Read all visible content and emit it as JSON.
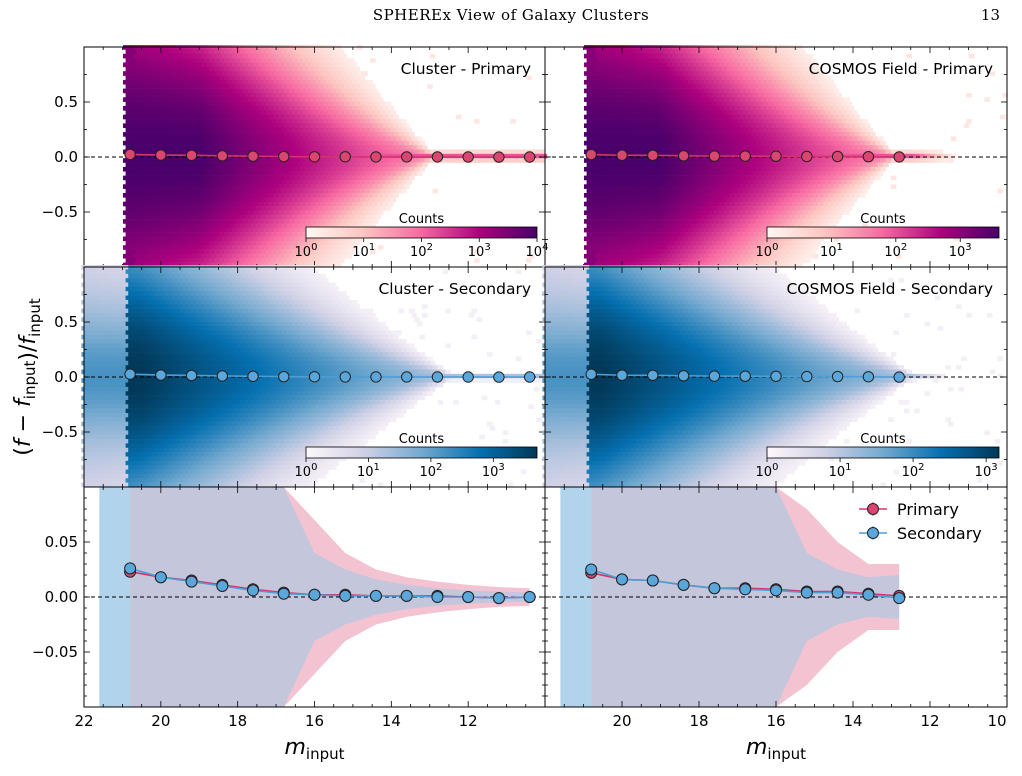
{
  "page": {
    "running_head": "SPHEREx View of Galaxy Clusters",
    "page_number": "13"
  },
  "figure": {
    "ylabel_main": "(f − f_input)/f_input",
    "xlabel": "m_input",
    "colors": {
      "primary": "#d6336c",
      "primary_marker": "#d9466f",
      "secondary": "#4d9ed6",
      "secondary_marker": "#5aa7db",
      "primary_band": "#f2b8c9",
      "secondary_band": "#9cc8e6",
      "overlap_band": "#b9a9c8"
    }
  },
  "chart_data": [
    {
      "type": "heatmap",
      "panel": "top-left",
      "title": "Cluster - Primary",
      "colormap": "RdPu",
      "colorbar_label": "Counts",
      "colorbar_ticks": [
        "10^0",
        "10^1",
        "10^2",
        "10^3",
        "10^4"
      ],
      "colorbar_range": [
        1,
        10000
      ],
      "xlim": [
        22,
        10
      ],
      "ylim": [
        -1.0,
        1.0
      ],
      "yticks": [
        "0.5",
        "0.0",
        "−0.5"
      ],
      "dense_start_x": 20.9,
      "x": [
        20.8,
        20.0,
        19.2,
        18.4,
        17.6,
        16.8,
        16.0,
        15.2,
        14.4,
        13.6,
        12.8,
        12.0,
        11.2,
        10.4
      ],
      "y": [
        0.023,
        0.018,
        0.015,
        0.011,
        0.007,
        0.004,
        0.002,
        0.002,
        0.001,
        0.001,
        0.001,
        0.0,
        -0.001,
        0.0
      ]
    },
    {
      "type": "heatmap",
      "panel": "top-right",
      "title": "COSMOS Field - Primary",
      "colormap": "RdPu",
      "colorbar_label": "Counts",
      "colorbar_ticks": [
        "10^0",
        "10^1",
        "10^2",
        "10^3"
      ],
      "colorbar_range": [
        1,
        4000
      ],
      "xlim": [
        22,
        10
      ],
      "ylim": [
        -1.0,
        1.0
      ],
      "dense_start_x": 20.9,
      "x": [
        20.8,
        20.0,
        19.2,
        18.4,
        17.6,
        16.8,
        16.0,
        15.2,
        14.4,
        13.6,
        12.8
      ],
      "y": [
        0.022,
        0.016,
        0.015,
        0.011,
        0.008,
        0.008,
        0.007,
        0.005,
        0.005,
        0.003,
        0.001
      ]
    },
    {
      "type": "heatmap",
      "panel": "middle-left",
      "title": "Cluster - Secondary",
      "colormap": "PuBu",
      "colorbar_label": "Counts",
      "colorbar_ticks": [
        "10^0",
        "10^1",
        "10^2",
        "10^3"
      ],
      "colorbar_range": [
        1,
        5000
      ],
      "xlim": [
        22,
        10
      ],
      "ylim": [
        -1.0,
        1.0
      ],
      "yticks": [
        "0.5",
        "0.0",
        "−0.5"
      ],
      "dense_start_x": 20.9,
      "x": [
        20.8,
        20.0,
        19.2,
        18.4,
        17.6,
        16.8,
        16.0,
        15.2,
        14.4,
        13.6,
        12.8,
        12.0,
        11.2,
        10.4
      ],
      "y": [
        0.026,
        0.018,
        0.014,
        0.01,
        0.006,
        0.003,
        0.002,
        0.001,
        0.001,
        0.001,
        0.0,
        0.0,
        -0.001,
        0.0
      ]
    },
    {
      "type": "heatmap",
      "panel": "middle-right",
      "title": "COSMOS Field - Secondary",
      "colormap": "PuBu",
      "colorbar_label": "Counts",
      "colorbar_ticks": [
        "10^0",
        "10^1",
        "10^2",
        "10^3"
      ],
      "colorbar_range": [
        1,
        1500
      ],
      "xlim": [
        22,
        10
      ],
      "ylim": [
        -1.0,
        1.0
      ],
      "dense_start_x": 20.9,
      "x": [
        20.8,
        20.0,
        19.2,
        18.4,
        17.6,
        16.8,
        16.0,
        15.2,
        14.4,
        13.6,
        12.8
      ],
      "y": [
        0.025,
        0.016,
        0.015,
        0.011,
        0.008,
        0.007,
        0.006,
        0.004,
        0.004,
        0.002,
        -0.001
      ]
    },
    {
      "type": "line",
      "panel": "bottom-left",
      "xlim": [
        22,
        10
      ],
      "ylim": [
        -0.1,
        0.1
      ],
      "xticks": [
        "22",
        "20",
        "18",
        "16",
        "14",
        "12"
      ],
      "yticks": [
        "0.05",
        "0.00",
        "−0.05"
      ],
      "xlabel": "m_input",
      "secondary_band_x": [
        21.6,
        20.8
      ],
      "series": [
        {
          "name": "Primary",
          "x": [
            20.8,
            20.0,
            19.2,
            18.4,
            17.6,
            16.8,
            16.0,
            15.2,
            14.4,
            13.6,
            12.8,
            12.0,
            11.2,
            10.4
          ],
          "y": [
            0.023,
            0.018,
            0.015,
            0.011,
            0.007,
            0.004,
            0.002,
            0.002,
            0.001,
            0.001,
            0.001,
            0.0,
            -0.001,
            0.0
          ],
          "band_x": [
            20.8,
            20.0,
            19.2,
            18.4,
            17.6,
            16.8,
            16.0,
            15.2,
            14.4,
            13.6,
            12.8,
            12.0,
            11.2,
            10.4
          ],
          "band_upper": [
            0.2,
            0.2,
            0.2,
            0.2,
            0.2,
            0.2,
            0.07,
            0.04,
            0.025,
            0.018,
            0.014,
            0.011,
            0.009,
            0.008
          ],
          "band_lower": [
            -0.2,
            -0.2,
            -0.2,
            -0.2,
            -0.2,
            -0.2,
            -0.07,
            -0.04,
            -0.025,
            -0.018,
            -0.014,
            -0.011,
            -0.009,
            -0.008
          ]
        },
        {
          "name": "Secondary",
          "x": [
            20.8,
            20.0,
            19.2,
            18.4,
            17.6,
            16.8,
            16.0,
            15.2,
            14.4,
            13.6,
            12.8,
            12.0,
            11.2,
            10.4
          ],
          "y": [
            0.026,
            0.018,
            0.014,
            0.01,
            0.006,
            0.003,
            0.002,
            0.001,
            0.001,
            0.001,
            0.0,
            0.0,
            -0.001,
            0.0
          ],
          "band_x": [
            21.6,
            20.8,
            20.0,
            19.2,
            18.4,
            17.6,
            16.8,
            16.0,
            15.2,
            14.4,
            13.6,
            12.8,
            12.0,
            11.2,
            10.4
          ],
          "band_upper": [
            0.2,
            0.2,
            0.2,
            0.2,
            0.2,
            0.2,
            0.2,
            0.04,
            0.025,
            0.016,
            0.011,
            0.008,
            0.006,
            0.005,
            0.004
          ],
          "band_lower": [
            -0.2,
            -0.2,
            -0.2,
            -0.2,
            -0.2,
            -0.2,
            -0.2,
            -0.04,
            -0.025,
            -0.016,
            -0.011,
            -0.008,
            -0.006,
            -0.005,
            -0.004
          ]
        }
      ]
    },
    {
      "type": "line",
      "panel": "bottom-right",
      "xlim": [
        22,
        10
      ],
      "ylim": [
        -0.1,
        0.1
      ],
      "xticks": [
        "20",
        "18",
        "16",
        "14",
        "12",
        "10"
      ],
      "xlabel": "m_input",
      "legend_position": "top-right",
      "secondary_band_x": [
        21.6,
        20.8
      ],
      "series": [
        {
          "name": "Primary",
          "x": [
            20.8,
            20.0,
            19.2,
            18.4,
            17.6,
            16.8,
            16.0,
            15.2,
            14.4,
            13.6,
            12.8
          ],
          "y": [
            0.022,
            0.016,
            0.015,
            0.011,
            0.008,
            0.008,
            0.007,
            0.005,
            0.005,
            0.003,
            0.001
          ],
          "band_x": [
            20.8,
            20.0,
            19.2,
            18.4,
            17.6,
            16.8,
            16.0,
            15.2,
            14.4,
            13.6,
            12.8
          ],
          "band_upper": [
            0.2,
            0.2,
            0.2,
            0.2,
            0.2,
            0.2,
            0.2,
            0.08,
            0.05,
            0.03,
            0.03
          ],
          "band_lower": [
            -0.2,
            -0.2,
            -0.2,
            -0.2,
            -0.2,
            -0.2,
            -0.2,
            -0.08,
            -0.05,
            -0.03,
            -0.03
          ]
        },
        {
          "name": "Secondary",
          "x": [
            20.8,
            20.0,
            19.2,
            18.4,
            17.6,
            16.8,
            16.0,
            15.2,
            14.4,
            13.6,
            12.8
          ],
          "y": [
            0.025,
            0.016,
            0.015,
            0.011,
            0.008,
            0.007,
            0.006,
            0.004,
            0.004,
            0.002,
            -0.001
          ],
          "band_x": [
            21.6,
            20.8,
            20.0,
            19.2,
            18.4,
            17.6,
            16.8,
            16.0,
            15.2,
            14.4,
            13.6,
            12.8
          ],
          "band_upper": [
            0.2,
            0.2,
            0.2,
            0.2,
            0.2,
            0.2,
            0.2,
            0.2,
            0.04,
            0.025,
            0.018,
            0.02
          ],
          "band_lower": [
            -0.2,
            -0.2,
            -0.2,
            -0.2,
            -0.2,
            -0.2,
            -0.2,
            -0.2,
            -0.04,
            -0.025,
            -0.018,
            -0.02
          ]
        }
      ]
    }
  ]
}
